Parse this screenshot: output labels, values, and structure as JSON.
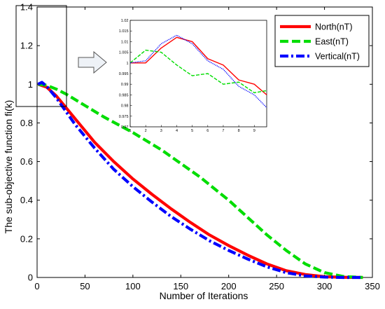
{
  "chart_data": [
    {
      "type": "line",
      "title": "",
      "xlabel": "Number of Iterations",
      "ylabel": "The sub-objective function fi(k)",
      "xlim": [
        0,
        350
      ],
      "ylim": [
        0,
        1.4
      ],
      "xticks": [
        0,
        50,
        100,
        150,
        200,
        250,
        300,
        350
      ],
      "yticks": [
        0,
        0.2,
        0.4,
        0.6,
        0.8,
        1,
        1.2,
        1.4
      ],
      "grid": false,
      "legend_position": "top-right",
      "series": [
        {
          "name": "North(nT)",
          "color": "#ff0000",
          "style": "solid",
          "x": [
            1,
            10,
            20,
            30,
            40,
            50,
            60,
            80,
            100,
            120,
            140,
            160,
            180,
            200,
            220,
            240,
            260,
            280,
            300,
            320,
            340
          ],
          "y": [
            1.0,
            0.985,
            0.94,
            0.88,
            0.82,
            0.76,
            0.7,
            0.6,
            0.51,
            0.43,
            0.355,
            0.285,
            0.22,
            0.165,
            0.115,
            0.07,
            0.035,
            0.015,
            0.004,
            0.001,
            0.0
          ]
        },
        {
          "name": "East(nT)",
          "color": "#00dd00",
          "style": "dashed",
          "x": [
            1,
            10,
            20,
            30,
            50,
            70,
            100,
            130,
            150,
            170,
            200,
            220,
            240,
            260,
            280,
            300,
            320,
            340
          ],
          "y": [
            1.0,
            0.995,
            0.975,
            0.95,
            0.89,
            0.83,
            0.75,
            0.66,
            0.59,
            0.52,
            0.4,
            0.31,
            0.22,
            0.14,
            0.07,
            0.025,
            0.005,
            0.0
          ]
        },
        {
          "name": "Vertical(nT)",
          "color": "#0000ff",
          "style": "dashdot",
          "x": [
            1,
            5,
            10,
            20,
            30,
            40,
            50,
            60,
            80,
            100,
            120,
            140,
            160,
            180,
            200,
            220,
            240,
            260,
            280,
            300,
            320,
            340
          ],
          "y": [
            1.0,
            1.01,
            0.99,
            0.93,
            0.86,
            0.79,
            0.73,
            0.67,
            0.56,
            0.47,
            0.39,
            0.315,
            0.25,
            0.19,
            0.14,
            0.095,
            0.055,
            0.025,
            0.008,
            0.002,
            0.0,
            0.0
          ]
        }
      ]
    },
    {
      "type": "line",
      "title": "",
      "xlim": [
        1,
        9.8
      ],
      "ylim": [
        0.97,
        1.02
      ],
      "xticks": [
        1,
        2,
        3,
        4,
        5,
        6,
        7,
        8,
        9
      ],
      "yticks": [
        0.97,
        0.975,
        0.98,
        0.985,
        0.99,
        0.995,
        1,
        1.005,
        1.01,
        1.015,
        1.02
      ],
      "ytick_labels": [
        "0.97",
        "0.975",
        "0.98",
        "0.985",
        "0.99",
        "0.995",
        "1",
        "1.005",
        "1.01",
        "1.015",
        "1.02"
      ],
      "grid": false,
      "series": [
        {
          "name": "North(nT)",
          "color": "#ff0000",
          "style": "solid",
          "x": [
            1,
            2,
            3,
            4,
            5,
            6,
            7,
            8,
            9,
            9.8
          ],
          "y": [
            1.0,
            1.0,
            1.007,
            1.012,
            1.01,
            1.002,
            0.999,
            0.992,
            0.99,
            0.985
          ]
        },
        {
          "name": "East(nT)",
          "color": "#00dd00",
          "style": "dashed",
          "x": [
            1,
            2,
            3,
            4,
            5,
            6,
            7,
            8,
            9,
            9.8
          ],
          "y": [
            1.0,
            1.006,
            1.005,
            0.999,
            0.994,
            0.995,
            0.99,
            0.991,
            0.986,
            0.987
          ]
        },
        {
          "name": "Vertical(nT)",
          "color": "#0000ff",
          "style": "dotted",
          "x": [
            1,
            2,
            3,
            4,
            5,
            6,
            7,
            8,
            9,
            9.8
          ],
          "y": [
            1.0,
            1.001,
            1.009,
            1.013,
            1.009,
            1.001,
            0.997,
            0.989,
            0.985,
            0.979
          ]
        }
      ]
    }
  ]
}
